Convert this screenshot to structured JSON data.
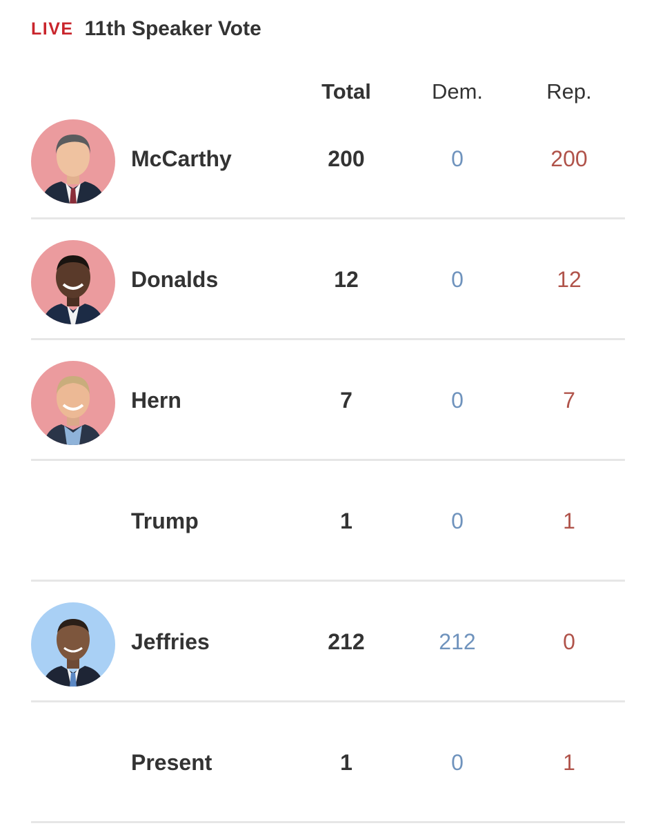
{
  "header": {
    "live_label": "LIVE",
    "title": "11th Speaker Vote"
  },
  "columns": {
    "total": "Total",
    "dem": "Dem.",
    "rep": "Rep."
  },
  "colors": {
    "live": "#c9252c",
    "dem": "#6f93bd",
    "rep": "#b0534a",
    "republican_avatar_bg": "#eb9b9e",
    "democrat_avatar_bg": "#a9d0f5"
  },
  "rows": [
    {
      "name": "McCarthy",
      "total": "200",
      "dem": "0",
      "rep": "200",
      "avatar": "republican"
    },
    {
      "name": "Donalds",
      "total": "12",
      "dem": "0",
      "rep": "12",
      "avatar": "republican"
    },
    {
      "name": "Hern",
      "total": "7",
      "dem": "0",
      "rep": "7",
      "avatar": "republican"
    },
    {
      "name": "Trump",
      "total": "1",
      "dem": "0",
      "rep": "1",
      "avatar": "none"
    },
    {
      "name": "Jeffries",
      "total": "212",
      "dem": "212",
      "rep": "0",
      "avatar": "democrat"
    },
    {
      "name": "Present",
      "total": "1",
      "dem": "0",
      "rep": "1",
      "avatar": "none"
    }
  ]
}
